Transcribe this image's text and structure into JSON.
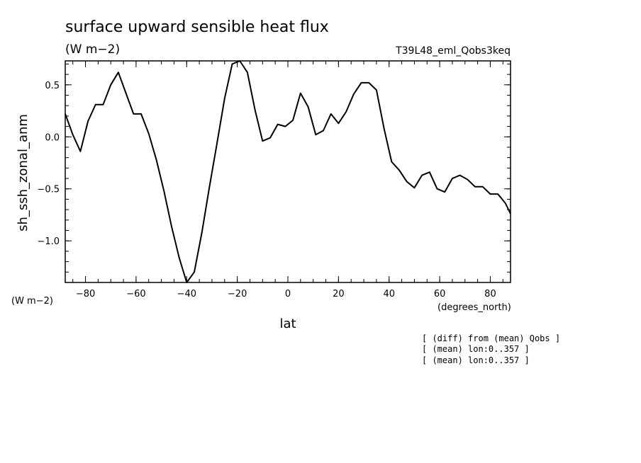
{
  "chart_data": {
    "type": "line",
    "title": "surface upward sensible heat flux",
    "subtitle": "(W m−2)",
    "experiment": "T39L48_eml_Qobs3keq",
    "ylabel": "sh_ssh_zonal_anm",
    "yunits": "(W m−2)",
    "xlabel": "lat",
    "xunits": "(degrees_north)",
    "xlim": [
      -88,
      88
    ],
    "ylim": [
      -1.4,
      0.73
    ],
    "xticks": [
      -80,
      -60,
      -40,
      -20,
      0,
      20,
      40,
      60,
      80
    ],
    "xtick_labels": [
      "−80",
      "−60",
      "−40",
      "−20",
      "0",
      "20",
      "40",
      "60",
      "80"
    ],
    "yticks": [
      -1.0,
      -0.5,
      0.0,
      0.5
    ],
    "ytick_labels": [
      "−1.0",
      "−0.5",
      "0.0",
      "0.5"
    ],
    "grid": false,
    "notes": [
      "[ (diff) from (mean) Qobs ]",
      "[ (mean) lon:0..357 ]",
      "[ (mean) lon:0..357 ]"
    ],
    "series": [
      {
        "x": [
          -88,
          -85,
          -82,
          -79,
          -76,
          -73,
          -70,
          -67,
          -64,
          -61,
          -58,
          -55,
          -52,
          -49,
          -46,
          -43,
          -40,
          -37,
          -34,
          -31,
          -28,
          -25,
          -22,
          -19,
          -16,
          -13,
          -10,
          -7,
          -4,
          -1,
          2,
          5,
          8,
          11,
          14,
          17,
          20,
          23,
          26,
          29,
          32,
          35,
          38,
          41,
          44,
          47,
          50,
          53,
          56,
          59,
          62,
          65,
          68,
          71,
          74,
          77,
          80,
          83,
          86,
          88
        ],
        "y": [
          0.22,
          0.02,
          -0.14,
          0.15,
          0.31,
          0.31,
          0.5,
          0.62,
          0.42,
          0.22,
          0.22,
          0.03,
          -0.22,
          -0.52,
          -0.86,
          -1.16,
          -1.4,
          -1.3,
          -0.92,
          -0.48,
          -0.06,
          0.37,
          0.7,
          0.73,
          0.62,
          0.26,
          -0.04,
          -0.01,
          0.12,
          0.1,
          0.16,
          0.42,
          0.29,
          0.02,
          0.06,
          0.22,
          0.13,
          0.24,
          0.41,
          0.52,
          0.52,
          0.45,
          0.08,
          -0.24,
          -0.32,
          -0.43,
          -0.49,
          -0.37,
          -0.34,
          -0.5,
          -0.53,
          -0.4,
          -0.37,
          -0.41,
          -0.48,
          -0.48,
          -0.55,
          -0.55,
          -0.64,
          -0.74
        ]
      }
    ]
  }
}
